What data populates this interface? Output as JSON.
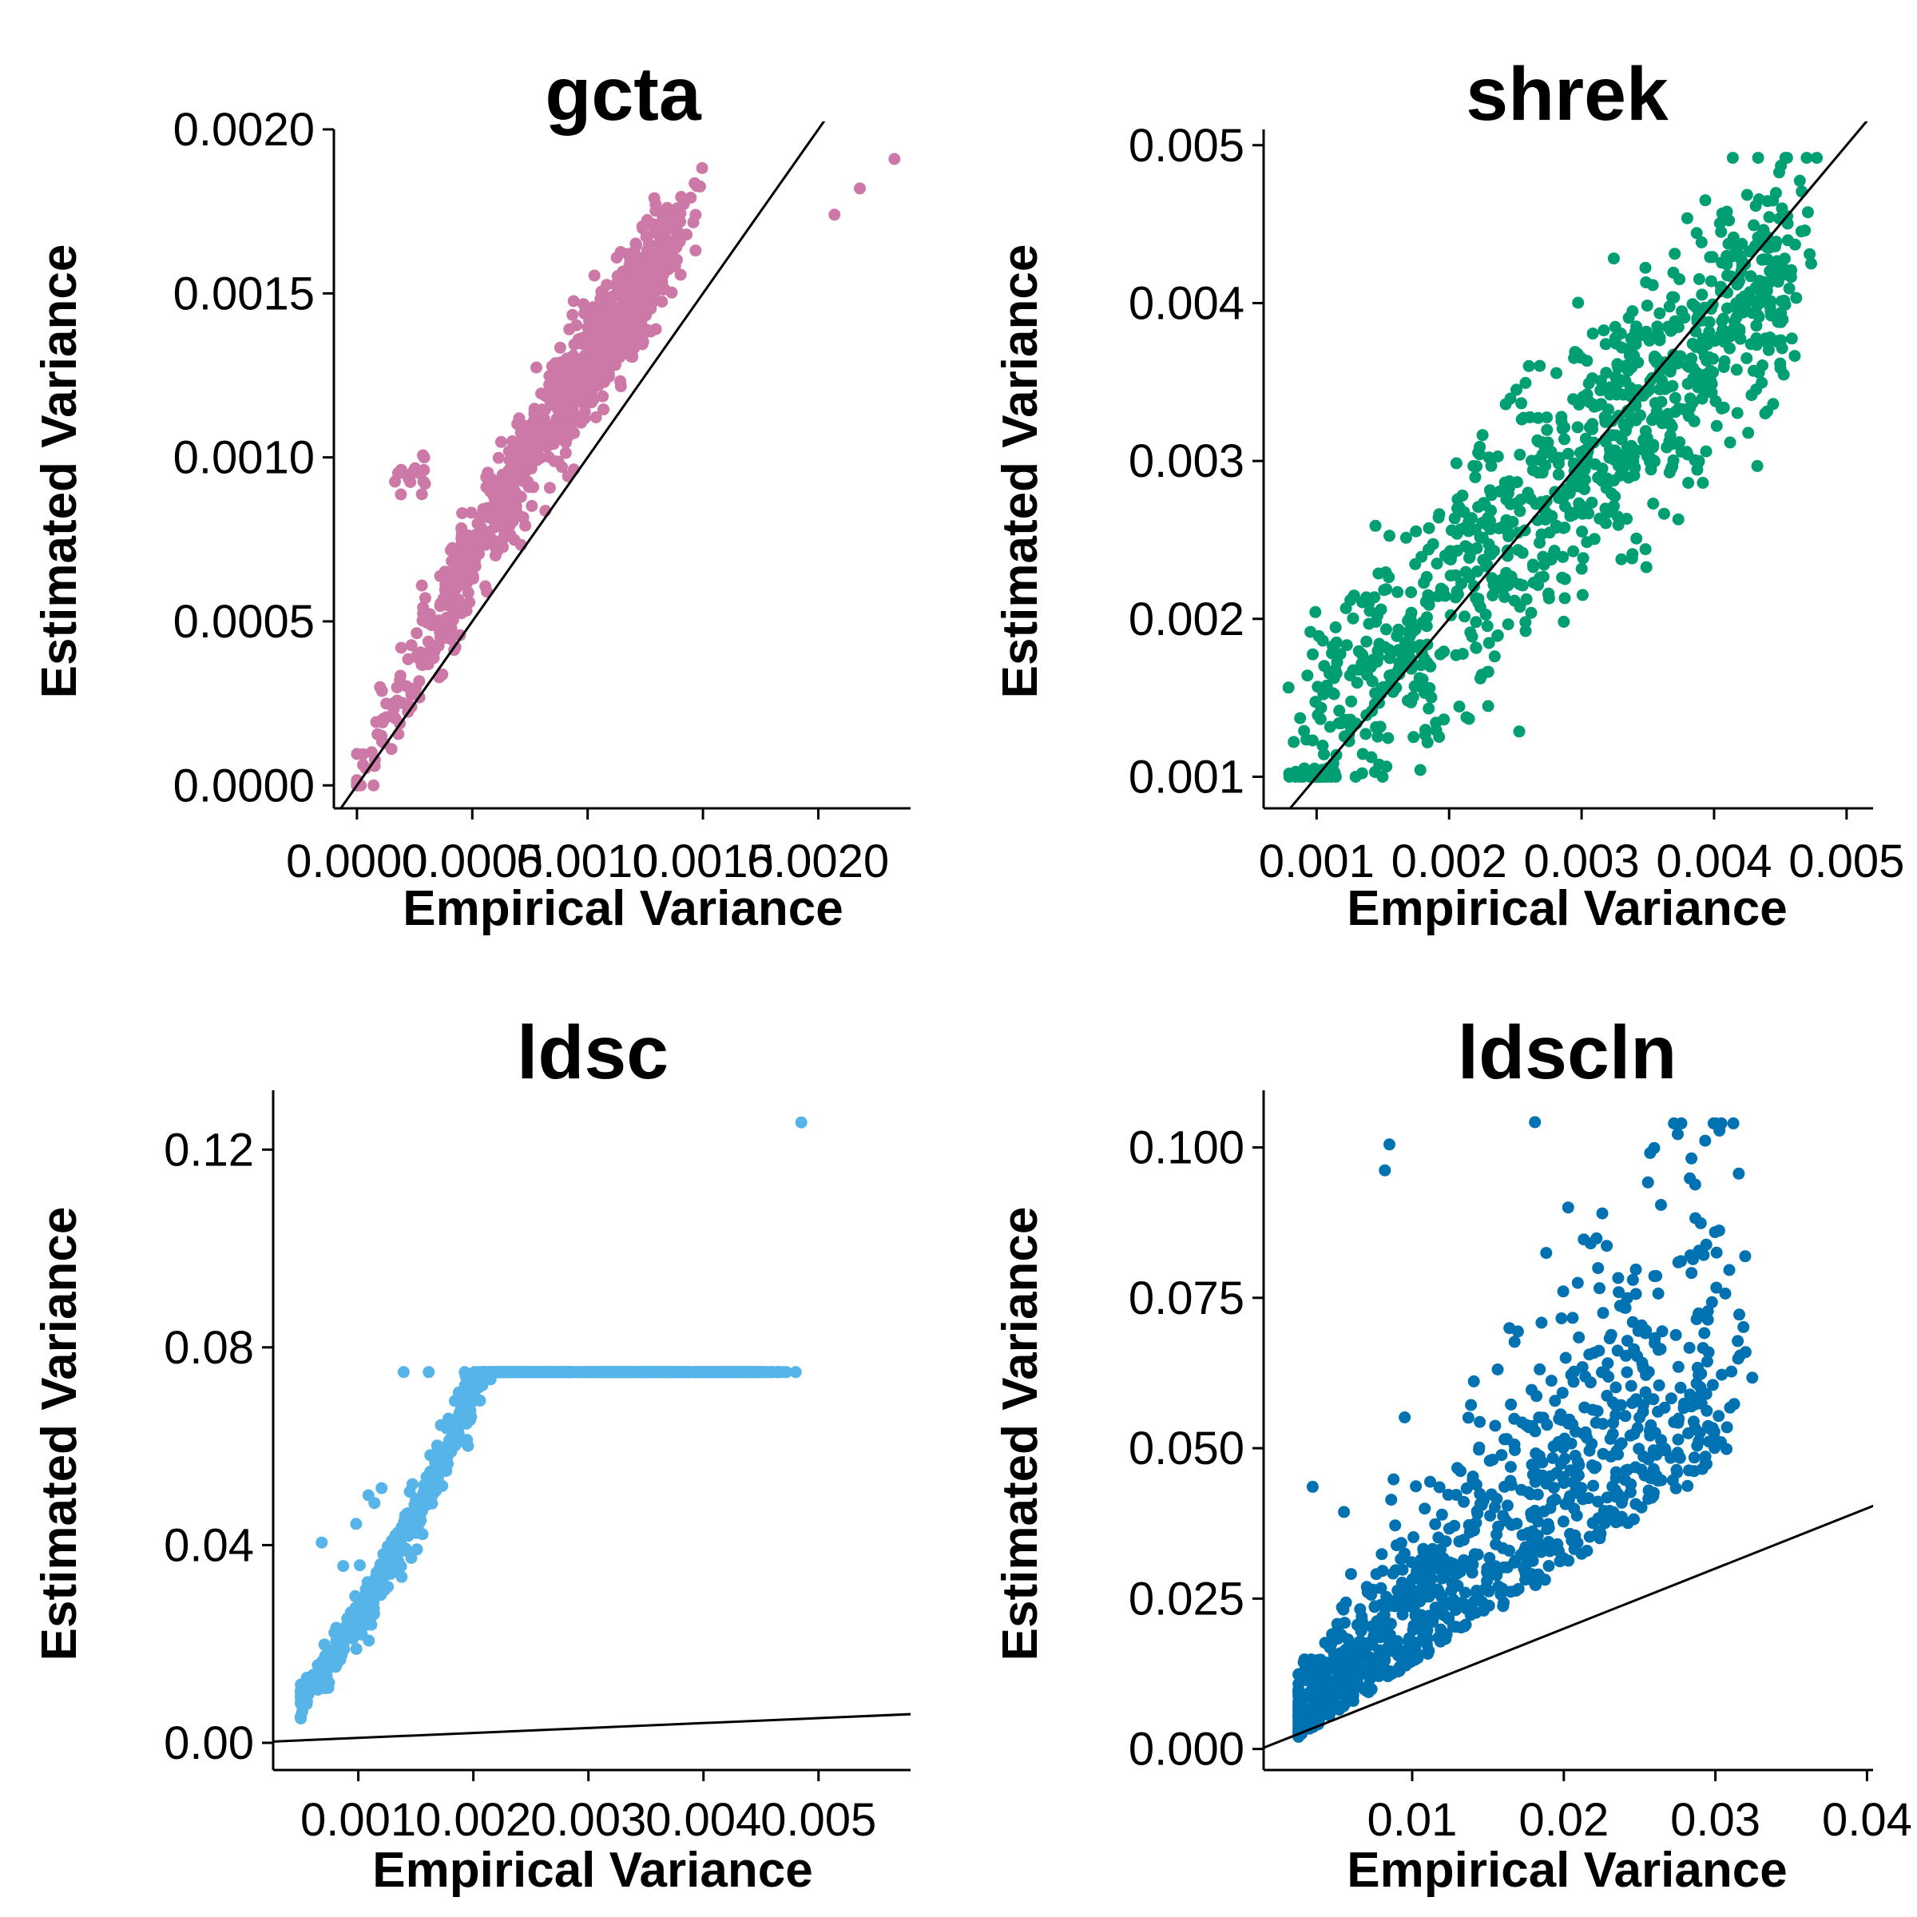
{
  "figure": {
    "background": "#ffffff"
  },
  "chart_data": [
    {
      "id": "gcta",
      "type": "scatter",
      "title": "gcta",
      "xlabel": "Empirical Variance",
      "ylabel": "Estimated Variance",
      "color": "#CC79A7",
      "xlim": [
        -0.0001,
        0.0024
      ],
      "ylim": [
        -7e-05,
        0.002
      ],
      "x_ticks": [
        0.0,
        0.0005,
        0.001,
        0.0015,
        0.002
      ],
      "x_tick_labels": [
        "0.0000",
        "0.0005",
        "0.0010",
        "0.0015",
        "0.0020"
      ],
      "y_ticks": [
        0.0,
        0.0005,
        0.001,
        0.0015,
        0.002
      ],
      "y_tick_labels": [
        "0.0000",
        "0.0005",
        "0.0010",
        "0.0015",
        "0.0020"
      ],
      "reference_line": "y = x",
      "n_points": 1000,
      "grid": false
    },
    {
      "id": "shrek",
      "type": "scatter",
      "title": "shrek",
      "xlabel": "Empirical Variance",
      "ylabel": "Estimated Variance",
      "color": "#009E73",
      "xlim": [
        0.0006,
        0.0052
      ],
      "ylim": [
        0.0008,
        0.0051
      ],
      "x_ticks": [
        0.001,
        0.002,
        0.003,
        0.004,
        0.005
      ],
      "x_tick_labels": [
        "0.001",
        "0.002",
        "0.003",
        "0.004",
        "0.005"
      ],
      "y_ticks": [
        0.001,
        0.002,
        0.003,
        0.004,
        0.005
      ],
      "y_tick_labels": [
        "0.001",
        "0.002",
        "0.003",
        "0.004",
        "0.005"
      ],
      "reference_line": "y = x",
      "n_points": 1000,
      "grid": false
    },
    {
      "id": "ldsc",
      "type": "scatter",
      "title": "ldsc",
      "xlabel": "Empirical Variance",
      "ylabel": "Estimated Variance",
      "color": "#56B4E9",
      "xlim": [
        0.00026,
        0.0058
      ],
      "ylim": [
        -0.0055,
        0.132
      ],
      "x_ticks": [
        0.001,
        0.002,
        0.003,
        0.004,
        0.005
      ],
      "x_tick_labels": [
        "0.001",
        "0.002",
        "0.003",
        "0.004",
        "0.005"
      ],
      "y_ticks": [
        0.0,
        0.04,
        0.08,
        0.12
      ],
      "y_tick_labels": [
        "0.00",
        "0.04",
        "0.08",
        "0.12"
      ],
      "reference_line": "y = x",
      "n_points": 1000,
      "grid": false
    },
    {
      "id": "ldscln",
      "type": "scatter",
      "title": "ldscln",
      "xlabel": "Empirical Variance",
      "ylabel": "Estimated Variance",
      "color": "#0072B2",
      "xlim": [
        0.0002,
        0.0404
      ],
      "ylim": [
        -0.0035,
        0.1095
      ],
      "x_ticks": [
        0.01,
        0.02,
        0.03,
        0.04
      ],
      "x_tick_labels": [
        "0.01",
        "0.02",
        "0.03",
        "0.04"
      ],
      "y_ticks": [
        0.0,
        0.025,
        0.05,
        0.075,
        0.1
      ],
      "y_tick_labels": [
        "0.000",
        "0.025",
        "0.050",
        "0.075",
        "0.100"
      ],
      "reference_line": "y = x",
      "n_points": 1000,
      "grid": false
    }
  ]
}
